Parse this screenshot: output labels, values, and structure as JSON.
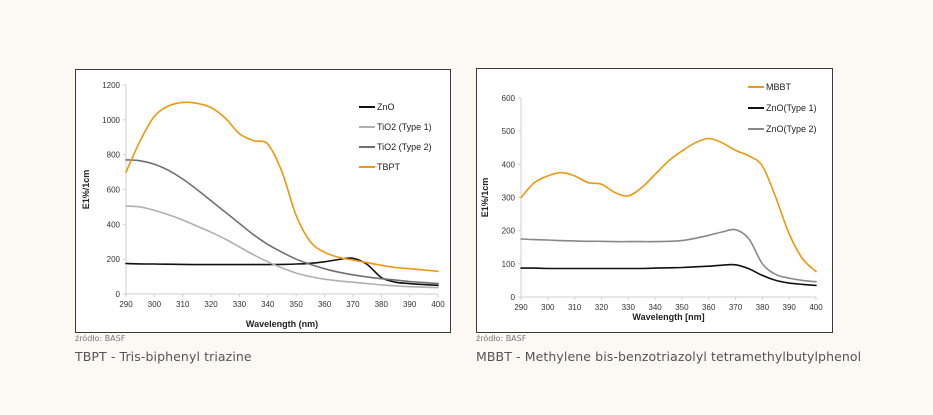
{
  "page": {
    "background": "#fcf8f3"
  },
  "figures": [
    {
      "source": "źródło: BASF",
      "caption": "TBPT - Tris-biphenyl triazine"
    },
    {
      "source": "źródło: BASF",
      "caption": "MBBT - Methylene bis-benzotriazolyl tetramethylbutylphenol"
    }
  ],
  "chart_data": [
    {
      "type": "line",
      "title": "",
      "xlabel": "Wavelength (nm)",
      "ylabel": "E1%/1cm",
      "xlim": [
        290,
        400
      ],
      "ylim": [
        0,
        1200
      ],
      "xticks": [
        290,
        300,
        310,
        320,
        330,
        340,
        350,
        360,
        370,
        380,
        390,
        400
      ],
      "yticks": [
        0,
        200,
        400,
        600,
        800,
        1000,
        1200
      ],
      "grid": false,
      "legend": "right",
      "x": [
        290,
        295,
        300,
        305,
        310,
        315,
        320,
        325,
        330,
        335,
        340,
        345,
        350,
        355,
        360,
        365,
        370,
        375,
        380,
        385,
        390,
        395,
        400
      ],
      "series": [
        {
          "name": "ZnO",
          "color": "#111111",
          "values": [
            175,
            173,
            172,
            171,
            170,
            169,
            169,
            169,
            169,
            169,
            169,
            170,
            172,
            176,
            185,
            198,
            205,
            170,
            95,
            68,
            60,
            54,
            50
          ]
        },
        {
          "name": "TiO2 (Type 1)",
          "color": "#b0b0b0",
          "values": [
            505,
            500,
            480,
            455,
            425,
            390,
            355,
            315,
            270,
            225,
            185,
            150,
            120,
            100,
            85,
            75,
            68,
            60,
            52,
            47,
            42,
            39,
            37
          ]
        },
        {
          "name": "TiO2 (Type 2)",
          "color": "#707070",
          "values": [
            770,
            765,
            745,
            710,
            660,
            600,
            535,
            470,
            405,
            340,
            285,
            240,
            200,
            170,
            145,
            125,
            110,
            98,
            88,
            80,
            72,
            66,
            60
          ]
        },
        {
          "name": "TBPT",
          "color": "#f0960f",
          "values": [
            700,
            880,
            1020,
            1080,
            1100,
            1095,
            1070,
            1010,
            920,
            880,
            860,
            700,
            450,
            300,
            240,
            210,
            195,
            180,
            165,
            152,
            145,
            138,
            130
          ]
        }
      ]
    },
    {
      "type": "line",
      "title": "",
      "xlabel": "Wavelength [nm]",
      "ylabel": "E1%/1cm",
      "xlim": [
        290,
        400
      ],
      "ylim": [
        0,
        600
      ],
      "xticks": [
        290,
        300,
        310,
        320,
        330,
        340,
        350,
        360,
        370,
        380,
        390,
        400
      ],
      "yticks": [
        0,
        100,
        200,
        300,
        400,
        500,
        600
      ],
      "grid": false,
      "legend": "top-right",
      "x": [
        290,
        295,
        300,
        305,
        310,
        315,
        320,
        325,
        330,
        335,
        340,
        345,
        350,
        355,
        360,
        365,
        370,
        375,
        380,
        385,
        390,
        395,
        400
      ],
      "series": [
        {
          "name": "MBBT",
          "color": "#f0960f",
          "values": [
            300,
            345,
            365,
            375,
            365,
            345,
            340,
            315,
            305,
            330,
            370,
            410,
            440,
            465,
            478,
            465,
            442,
            425,
            395,
            300,
            190,
            115,
            77
          ]
        },
        {
          "name": "ZnO(Type 1)",
          "color": "#111111",
          "values": [
            87,
            87,
            86,
            86,
            86,
            86,
            86,
            86,
            86,
            86,
            87,
            88,
            89,
            91,
            93,
            96,
            97,
            85,
            65,
            50,
            42,
            38,
            35
          ]
        },
        {
          "name": "ZnO(Type 2)",
          "color": "#888888",
          "values": [
            175,
            173,
            172,
            170,
            169,
            168,
            168,
            167,
            167,
            167,
            167,
            168,
            170,
            177,
            186,
            196,
            203,
            175,
            100,
            68,
            57,
            50,
            46
          ]
        }
      ]
    }
  ]
}
